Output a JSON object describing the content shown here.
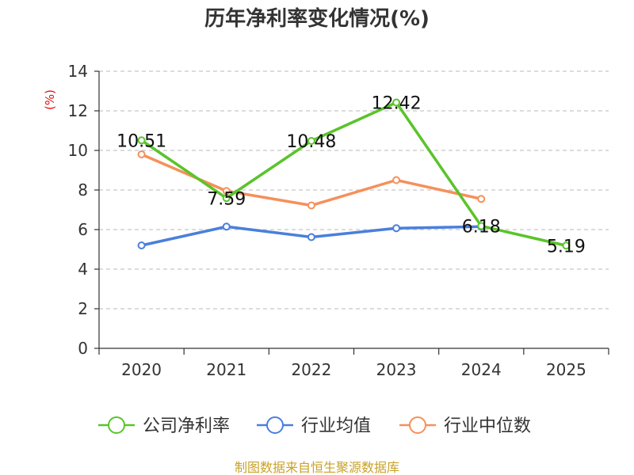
{
  "chart_data": {
    "type": "line",
    "title": "历年净利率变化情况(%)",
    "unit_label": "(%)",
    "categories": [
      "2020",
      "2021",
      "2022",
      "2023",
      "2024",
      "2025"
    ],
    "ylim": [
      0,
      14
    ],
    "yticks": [
      0,
      2,
      4,
      6,
      8,
      10,
      12,
      14
    ],
    "grid": true,
    "legend_position": "bottom",
    "series": [
      {
        "name": "公司净利率",
        "color": "#5ac42a",
        "values": [
          10.51,
          7.59,
          10.48,
          12.42,
          6.18,
          5.19
        ],
        "labels": [
          "10.51",
          "7.59",
          "10.48",
          "12.42",
          "6.18",
          "5.19"
        ]
      },
      {
        "name": "行业均值",
        "color": "#4a7fdc",
        "values": [
          5.2,
          6.15,
          5.62,
          6.07,
          6.15,
          null
        ],
        "labels": []
      },
      {
        "name": "行业中位数",
        "color": "#f5905a",
        "values": [
          9.8,
          7.95,
          7.22,
          8.5,
          7.55,
          null
        ],
        "labels": []
      }
    ],
    "source": "制图数据来自恒生聚源数据库"
  }
}
